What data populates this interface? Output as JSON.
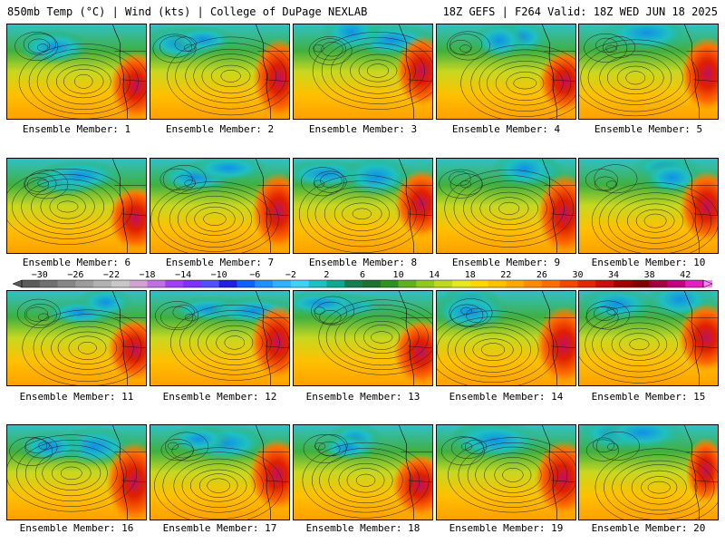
{
  "header": {
    "left": "850mb Temp (°C) | Wind (kts) | College of DuPage NEXLAB",
    "right": "18Z GEFS | F264 Valid: 18Z WED JUN 18 2025"
  },
  "panels": [
    {
      "label": "Ensemble Member: 1"
    },
    {
      "label": "Ensemble Member: 2"
    },
    {
      "label": "Ensemble Member: 3"
    },
    {
      "label": "Ensemble Member: 4"
    },
    {
      "label": "Ensemble Member: 5"
    },
    {
      "label": "Ensemble Member: 6"
    },
    {
      "label": "Ensemble Member: 7"
    },
    {
      "label": "Ensemble Member: 8"
    },
    {
      "label": "Ensemble Member: 9"
    },
    {
      "label": "Ensemble Member: 10"
    },
    {
      "label": "Ensemble Member: 11"
    },
    {
      "label": "Ensemble Member: 12"
    },
    {
      "label": "Ensemble Member: 13"
    },
    {
      "label": "Ensemble Member: 14"
    },
    {
      "label": "Ensemble Member: 15"
    },
    {
      "label": "Ensemble Member: 16"
    },
    {
      "label": "Ensemble Member: 17"
    },
    {
      "label": "Ensemble Member: 18"
    },
    {
      "label": "Ensemble Member: 19"
    },
    {
      "label": "Ensemble Member: 20"
    }
  ],
  "colorbar": {
    "min": -32,
    "max": 44,
    "step": 2,
    "tick_labels": [
      "−30",
      "−26",
      "−22",
      "−18",
      "−14",
      "−10",
      "−6",
      "−2",
      "2",
      "6",
      "10",
      "14",
      "18",
      "22",
      "26",
      "30",
      "34",
      "38",
      "42"
    ],
    "tick_values": [
      -30,
      -26,
      -22,
      -18,
      -14,
      -10,
      -6,
      -2,
      2,
      6,
      10,
      14,
      18,
      22,
      26,
      30,
      34,
      38,
      42
    ],
    "colors": [
      "#5a5a5a",
      "#707070",
      "#868686",
      "#9c9c9c",
      "#b2b2b2",
      "#c8c8c8",
      "#d2a0d2",
      "#c070e0",
      "#a040f0",
      "#8030f8",
      "#5050ff",
      "#2020e0",
      "#1060ff",
      "#2090ff",
      "#30b0ff",
      "#40d0f8",
      "#20c0c0",
      "#10a890",
      "#108050",
      "#207030",
      "#309020",
      "#60b020",
      "#90c820",
      "#c0d820",
      "#e8e820",
      "#ffd800",
      "#ffc000",
      "#ffa800",
      "#ff8c00",
      "#ff6e00",
      "#f04800",
      "#e02800",
      "#c81010",
      "#a00000",
      "#800000",
      "#a00040",
      "#c00080",
      "#e020c0",
      "#ff80ff"
    ]
  }
}
